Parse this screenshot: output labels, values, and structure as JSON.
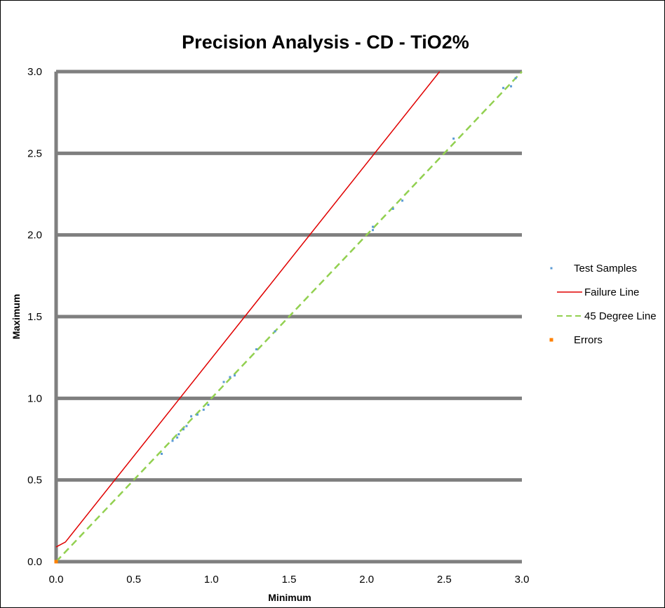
{
  "chart_data": {
    "type": "scatter",
    "title": "Precision Analysis - CD - TiO2%",
    "xlabel": "Minimum",
    "ylabel": "Maximum",
    "xlim": [
      0,
      3
    ],
    "ylim": [
      0,
      3
    ],
    "x_ticks": [
      "0.0",
      "0.5",
      "1.0",
      "1.5",
      "2.0",
      "2.5",
      "3.0"
    ],
    "y_ticks": [
      "0.0",
      "0.5",
      "1.0",
      "1.5",
      "2.0",
      "2.5",
      "3.0"
    ],
    "grid": "horizontal",
    "legend_position": "right",
    "series": [
      {
        "name": "Test Samples",
        "kind": "scatter",
        "color": "#5b9bd5",
        "points": [
          [
            0.68,
            0.66
          ],
          [
            0.75,
            0.74
          ],
          [
            0.78,
            0.76
          ],
          [
            0.79,
            0.78
          ],
          [
            0.82,
            0.81
          ],
          [
            0.84,
            0.83
          ],
          [
            0.87,
            0.89
          ],
          [
            0.91,
            0.9
          ],
          [
            0.95,
            0.93
          ],
          [
            0.98,
            0.96
          ],
          [
            1.08,
            1.1
          ],
          [
            1.12,
            1.13
          ],
          [
            1.15,
            1.14
          ],
          [
            1.29,
            1.3
          ],
          [
            1.41,
            1.41
          ],
          [
            2.04,
            2.03
          ],
          [
            2.04,
            2.05
          ],
          [
            2.17,
            2.16
          ],
          [
            2.23,
            2.21
          ],
          [
            2.56,
            2.59
          ],
          [
            2.88,
            2.9
          ],
          [
            2.93,
            2.91
          ],
          [
            2.96,
            2.96
          ]
        ]
      },
      {
        "name": "Failure Line",
        "kind": "line",
        "color": "#e00000",
        "points": [
          [
            0,
            0.09
          ],
          [
            0.06,
            0.12
          ],
          [
            2.47,
            3.0
          ]
        ]
      },
      {
        "name": "45 Degree Line",
        "kind": "line",
        "dashed": true,
        "color": "#92d050",
        "points": [
          [
            0,
            0
          ],
          [
            3,
            3
          ]
        ]
      },
      {
        "name": "Errors",
        "kind": "scatter",
        "color": "#ff8000",
        "points": [
          [
            0.0,
            0.0
          ]
        ]
      }
    ]
  }
}
